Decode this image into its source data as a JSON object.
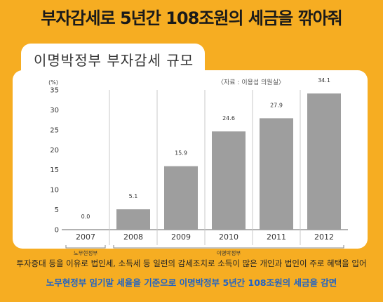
{
  "headline": "부자감세로 5년간 108조원의 세금을 깎아줘",
  "chart_data": {
    "type": "bar",
    "title": "이명박정부 부자감세 규모",
    "source": "〈자료 : 이용섭 의원실〉",
    "ylabel": "(%)",
    "ylim": [
      0,
      35
    ],
    "yticks": [
      0,
      5,
      10,
      15,
      20,
      25,
      30,
      35
    ],
    "categories": [
      "2007",
      "2008",
      "2009",
      "2010",
      "2011",
      "2012"
    ],
    "values": [
      0.0,
      5.1,
      15.9,
      24.6,
      27.9,
      34.1
    ],
    "value_labels": [
      "0.0",
      "5.1",
      "15.9",
      "24.6",
      "27.9",
      "34.1"
    ],
    "groups": [
      {
        "label": "노무현정부",
        "categories": [
          "2007"
        ]
      },
      {
        "label": "이명박정부",
        "categories": [
          "2008",
          "2009",
          "2010",
          "2011",
          "2012"
        ]
      }
    ],
    "bar_color": "#9e9e9e",
    "grid": "vertical-separators"
  },
  "description": "투자증대 등을 이유로 법인세, 소득세 등 일련의 감세조치로 소득이 많은 개인과 법인이 주로 혜택을 입어",
  "highlight": "노무현정부 임기말 세율을 기준으로 이명박정부 5년간 108조원의 세금을 감면",
  "colors": {
    "background": "#f6ad22",
    "panel": "#ffffff",
    "highlight": "#1f63c6",
    "bar": "#9e9e9e"
  }
}
